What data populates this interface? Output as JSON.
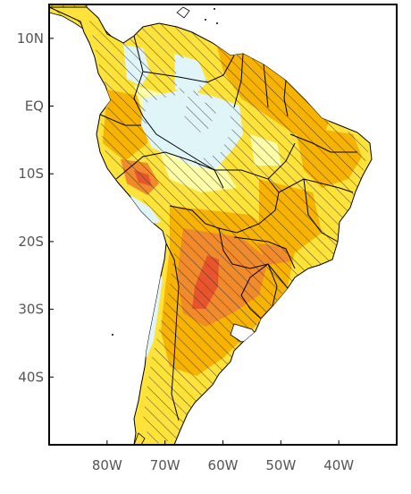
{
  "colors": {
    "ocean": "#ffffff",
    "frame": "#000000",
    "light_blue": "#dff5f7",
    "pale_yellow": "#ffffa8",
    "yellow": "#ffe23a",
    "orange": "#f7b300",
    "dark_orange": "#f08a2a",
    "red_orange": "#e8552c",
    "hatch": "#333333"
  },
  "axes": {
    "lat_labels": [
      "10N",
      "EQ",
      "10S",
      "20S",
      "30S",
      "40S"
    ],
    "lon_labels": [
      "80W",
      "70W",
      "60W",
      "50W",
      "40W"
    ],
    "lat_values": [
      10,
      0,
      -10,
      -20,
      -30,
      -40
    ],
    "lon_values": [
      -80,
      -70,
      -60,
      -50,
      -40
    ],
    "lon_range": [
      -90,
      -30
    ],
    "lat_range": [
      -50,
      15
    ]
  }
}
